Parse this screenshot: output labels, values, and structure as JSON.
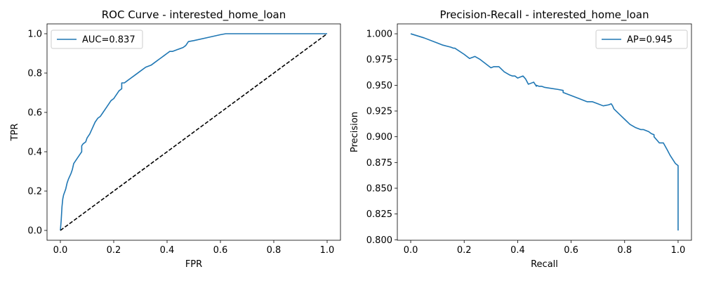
{
  "chart_data": [
    {
      "type": "line",
      "title": "ROC Curve - interested_home_loan",
      "xlabel": "FPR",
      "ylabel": "TPR",
      "xlim": [
        -0.05,
        1.05
      ],
      "ylim": [
        -0.05,
        1.05
      ],
      "xticks": [
        0.0,
        0.2,
        0.4,
        0.6,
        0.8,
        1.0
      ],
      "yticks": [
        0.0,
        0.2,
        0.4,
        0.6,
        0.8,
        1.0
      ],
      "xtick_labels": [
        "0.0",
        "0.2",
        "0.4",
        "0.6",
        "0.8",
        "1.0"
      ],
      "ytick_labels": [
        "0.0",
        "0.2",
        "0.4",
        "0.6",
        "0.8",
        "1.0"
      ],
      "grid": false,
      "legend": {
        "placement": "top-left",
        "entries": [
          "AUC=0.837"
        ]
      },
      "series": [
        {
          "name": "AUC=0.837",
          "color": "#1f77b4",
          "style": "solid",
          "x": [
            0.0,
            0.003,
            0.006,
            0.009,
            0.012,
            0.02,
            0.025,
            0.03,
            0.04,
            0.045,
            0.05,
            0.06,
            0.07,
            0.075,
            0.08,
            0.08,
            0.085,
            0.095,
            0.1,
            0.105,
            0.11,
            0.12,
            0.13,
            0.14,
            0.15,
            0.16,
            0.17,
            0.18,
            0.19,
            0.2,
            0.205,
            0.21,
            0.22,
            0.23,
            0.23,
            0.24,
            0.25,
            0.26,
            0.28,
            0.3,
            0.32,
            0.34,
            0.36,
            0.37,
            0.38,
            0.39,
            0.4,
            0.41,
            0.42,
            0.44,
            0.46,
            0.47,
            0.48,
            0.5,
            0.55,
            0.6,
            0.62,
            0.7,
            0.8,
            0.9,
            1.0
          ],
          "y": [
            0.0,
            0.05,
            0.12,
            0.16,
            0.18,
            0.21,
            0.24,
            0.26,
            0.29,
            0.31,
            0.34,
            0.36,
            0.38,
            0.39,
            0.4,
            0.43,
            0.44,
            0.45,
            0.47,
            0.48,
            0.49,
            0.52,
            0.55,
            0.57,
            0.58,
            0.6,
            0.62,
            0.64,
            0.66,
            0.67,
            0.68,
            0.69,
            0.71,
            0.72,
            0.75,
            0.75,
            0.76,
            0.77,
            0.79,
            0.81,
            0.83,
            0.84,
            0.86,
            0.87,
            0.88,
            0.89,
            0.9,
            0.91,
            0.91,
            0.92,
            0.93,
            0.94,
            0.96,
            0.965,
            0.98,
            0.995,
            1.0,
            1.0,
            1.0,
            1.0,
            1.0
          ]
        },
        {
          "color": "#000000",
          "style": "dashed",
          "x": [
            0.0,
            1.0
          ],
          "y": [
            0.0,
            1.0
          ]
        }
      ]
    },
    {
      "type": "line",
      "title": "Precision-Recall - interested_home_loan",
      "xlabel": "Recall",
      "ylabel": "Precision",
      "xlim": [
        -0.05,
        1.05
      ],
      "ylim": [
        0.7995,
        1.0096
      ],
      "xticks": [
        0.0,
        0.2,
        0.4,
        0.6,
        0.8,
        1.0
      ],
      "yticks": [
        0.8,
        0.825,
        0.85,
        0.875,
        0.9,
        0.925,
        0.95,
        0.975,
        1.0
      ],
      "xtick_labels": [
        "0.0",
        "0.2",
        "0.4",
        "0.6",
        "0.8",
        "1.0"
      ],
      "ytick_labels": [
        "0.800",
        "0.825",
        "0.850",
        "0.875",
        "0.900",
        "0.925",
        "0.950",
        "0.975",
        "1.000"
      ],
      "grid": false,
      "legend": {
        "placement": "top-right",
        "entries": [
          "AP=0.945"
        ]
      },
      "series": [
        {
          "name": "AP=0.945",
          "color": "#1f77b4",
          "style": "solid",
          "x": [
            0.0,
            0.05,
            0.1,
            0.12,
            0.15,
            0.16,
            0.165,
            0.2,
            0.22,
            0.24,
            0.26,
            0.3,
            0.31,
            0.33,
            0.35,
            0.37,
            0.38,
            0.39,
            0.4,
            0.42,
            0.43,
            0.44,
            0.45,
            0.46,
            0.47,
            0.47,
            0.48,
            0.49,
            0.5,
            0.55,
            0.57,
            0.57,
            0.6,
            0.63,
            0.66,
            0.68,
            0.7,
            0.72,
            0.74,
            0.75,
            0.755,
            0.76,
            0.78,
            0.8,
            0.82,
            0.84,
            0.86,
            0.87,
            0.89,
            0.9,
            0.91,
            0.91,
            0.93,
            0.94,
            0.945,
            0.96,
            0.97,
            0.98,
            0.99,
            1.0,
            1.0
          ],
          "y": [
            1.0,
            0.996,
            0.991,
            0.989,
            0.987,
            0.986,
            0.986,
            0.98,
            0.976,
            0.978,
            0.975,
            0.967,
            0.968,
            0.968,
            0.963,
            0.96,
            0.959,
            0.959,
            0.957,
            0.959,
            0.956,
            0.951,
            0.952,
            0.953,
            0.949,
            0.95,
            0.949,
            0.949,
            0.948,
            0.946,
            0.945,
            0.943,
            0.94,
            0.937,
            0.934,
            0.934,
            0.932,
            0.93,
            0.931,
            0.932,
            0.93,
            0.927,
            0.922,
            0.917,
            0.912,
            0.909,
            0.907,
            0.907,
            0.905,
            0.903,
            0.902,
            0.9,
            0.894,
            0.894,
            0.894,
            0.887,
            0.882,
            0.878,
            0.874,
            0.872,
            0.809
          ]
        }
      ]
    }
  ]
}
